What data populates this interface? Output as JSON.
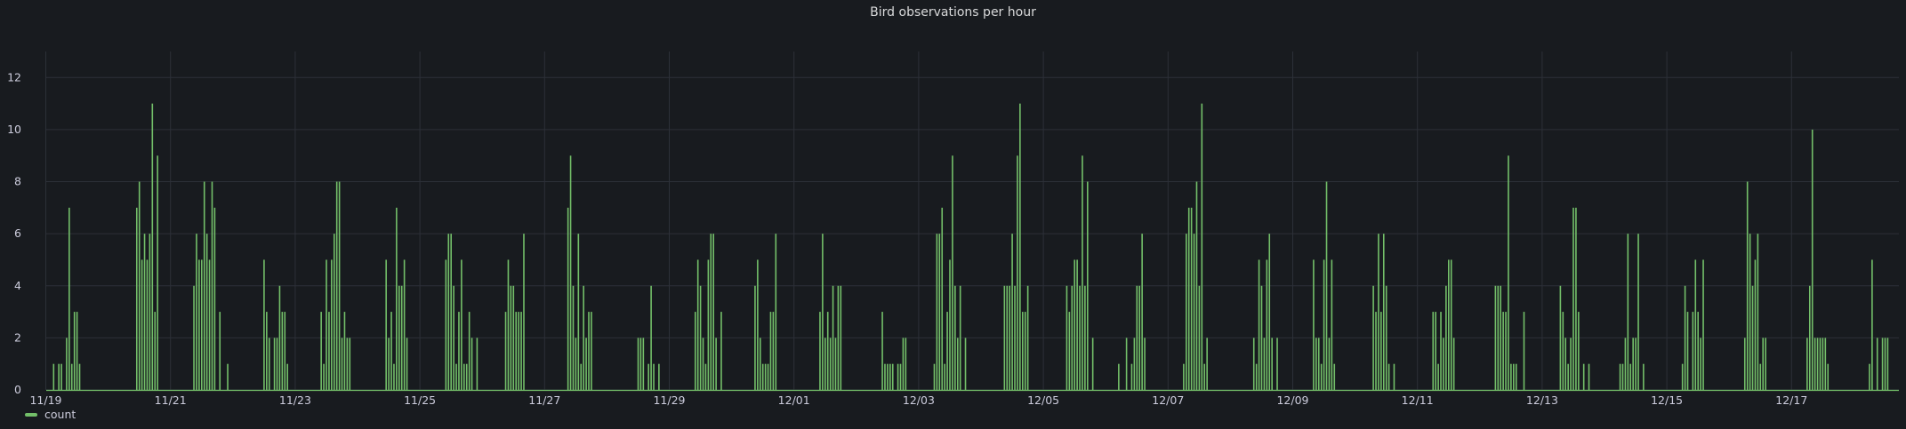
{
  "panel": {
    "title": "Bird observations per hour",
    "legend": {
      "label": "count",
      "color": "#73bf69"
    }
  },
  "chart_data": {
    "type": "bar",
    "title": "Bird observations per hour",
    "xlabel": "",
    "ylabel": "",
    "x_ticks": [
      "11/19",
      "11/21",
      "11/23",
      "11/25",
      "11/27",
      "11/29",
      "12/01",
      "12/03",
      "12/05",
      "12/07",
      "12/09",
      "12/11",
      "12/13",
      "12/15",
      "12/17"
    ],
    "y_ticks": [
      0,
      2,
      4,
      6,
      8,
      10,
      12
    ],
    "ylim": [
      0,
      13
    ],
    "grid": true,
    "legend_placement": "bottom-left",
    "series": [
      {
        "name": "count",
        "color": "#73bf69",
        "points": [
          [
            "11/19 03:00",
            1
          ],
          [
            "11/19 05:00",
            1
          ],
          [
            "11/19 06:00",
            1
          ],
          [
            "11/19 08:00",
            2
          ],
          [
            "11/19 09:00",
            7
          ],
          [
            "11/19 10:00",
            1
          ],
          [
            "11/19 11:00",
            3
          ],
          [
            "11/19 12:00",
            3
          ],
          [
            "11/19 13:00",
            1
          ],
          [
            "11/20 11:00",
            7
          ],
          [
            "11/20 12:00",
            8
          ],
          [
            "11/20 13:00",
            5
          ],
          [
            "11/20 14:00",
            6
          ],
          [
            "11/20 15:00",
            5
          ],
          [
            "11/20 16:00",
            6
          ],
          [
            "11/20 17:00",
            11
          ],
          [
            "11/20 18:00",
            3
          ],
          [
            "11/20 19:00",
            9
          ],
          [
            "11/21 09:00",
            4
          ],
          [
            "11/21 10:00",
            6
          ],
          [
            "11/21 11:00",
            5
          ],
          [
            "11/21 12:00",
            5
          ],
          [
            "11/21 13:00",
            8
          ],
          [
            "11/21 14:00",
            6
          ],
          [
            "11/21 15:00",
            5
          ],
          [
            "11/21 16:00",
            8
          ],
          [
            "11/21 17:00",
            7
          ],
          [
            "11/21 19:00",
            3
          ],
          [
            "11/21 22:00",
            1
          ],
          [
            "11/22 12:00",
            5
          ],
          [
            "11/22 13:00",
            3
          ],
          [
            "11/22 14:00",
            2
          ],
          [
            "11/22 16:00",
            2
          ],
          [
            "11/22 17:00",
            2
          ],
          [
            "11/22 18:00",
            4
          ],
          [
            "11/22 19:00",
            3
          ],
          [
            "11/22 20:00",
            3
          ],
          [
            "11/22 21:00",
            1
          ],
          [
            "11/23 10:00",
            3
          ],
          [
            "11/23 11:00",
            1
          ],
          [
            "11/23 12:00",
            5
          ],
          [
            "11/23 13:00",
            3
          ],
          [
            "11/23 14:00",
            5
          ],
          [
            "11/23 15:00",
            6
          ],
          [
            "11/23 16:00",
            8
          ],
          [
            "11/23 17:00",
            8
          ],
          [
            "11/23 18:00",
            2
          ],
          [
            "11/23 19:00",
            3
          ],
          [
            "11/23 20:00",
            2
          ],
          [
            "11/23 21:00",
            2
          ],
          [
            "11/24 11:00",
            5
          ],
          [
            "11/24 12:00",
            2
          ],
          [
            "11/24 13:00",
            3
          ],
          [
            "11/24 14:00",
            1
          ],
          [
            "11/24 15:00",
            7
          ],
          [
            "11/24 16:00",
            4
          ],
          [
            "11/24 17:00",
            4
          ],
          [
            "11/24 18:00",
            5
          ],
          [
            "11/24 19:00",
            2
          ],
          [
            "11/25 10:00",
            5
          ],
          [
            "11/25 11:00",
            6
          ],
          [
            "11/25 12:00",
            6
          ],
          [
            "11/25 13:00",
            4
          ],
          [
            "11/25 14:00",
            1
          ],
          [
            "11/25 15:00",
            3
          ],
          [
            "11/25 16:00",
            5
          ],
          [
            "11/25 17:00",
            1
          ],
          [
            "11/25 18:00",
            1
          ],
          [
            "11/25 19:00",
            3
          ],
          [
            "11/25 20:00",
            2
          ],
          [
            "11/25 22:00",
            2
          ],
          [
            "11/26 09:00",
            3
          ],
          [
            "11/26 10:00",
            5
          ],
          [
            "11/26 11:00",
            4
          ],
          [
            "11/26 12:00",
            4
          ],
          [
            "11/26 13:00",
            3
          ],
          [
            "11/26 14:00",
            3
          ],
          [
            "11/26 15:00",
            3
          ],
          [
            "11/26 16:00",
            6
          ],
          [
            "11/27 09:00",
            7
          ],
          [
            "11/27 10:00",
            9
          ],
          [
            "11/27 11:00",
            4
          ],
          [
            "11/27 12:00",
            2
          ],
          [
            "11/27 13:00",
            6
          ],
          [
            "11/27 14:00",
            1
          ],
          [
            "11/27 15:00",
            4
          ],
          [
            "11/27 16:00",
            2
          ],
          [
            "11/27 17:00",
            3
          ],
          [
            "11/27 18:00",
            3
          ],
          [
            "11/28 12:00",
            2
          ],
          [
            "11/28 13:00",
            2
          ],
          [
            "11/28 14:00",
            2
          ],
          [
            "11/28 16:00",
            1
          ],
          [
            "11/28 17:00",
            4
          ],
          [
            "11/28 18:00",
            1
          ],
          [
            "11/28 20:00",
            1
          ],
          [
            "11/29 10:00",
            3
          ],
          [
            "11/29 11:00",
            5
          ],
          [
            "11/29 12:00",
            4
          ],
          [
            "11/29 13:00",
            2
          ],
          [
            "11/29 14:00",
            1
          ],
          [
            "11/29 15:00",
            5
          ],
          [
            "11/29 16:00",
            6
          ],
          [
            "11/29 17:00",
            6
          ],
          [
            "11/29 18:00",
            2
          ],
          [
            "11/29 20:00",
            3
          ],
          [
            "11/30 09:00",
            4
          ],
          [
            "11/30 10:00",
            5
          ],
          [
            "11/30 11:00",
            2
          ],
          [
            "11/30 12:00",
            1
          ],
          [
            "11/30 13:00",
            1
          ],
          [
            "11/30 14:00",
            1
          ],
          [
            "11/30 15:00",
            3
          ],
          [
            "11/30 16:00",
            3
          ],
          [
            "11/30 17:00",
            6
          ],
          [
            "12/01 10:00",
            3
          ],
          [
            "12/01 11:00",
            6
          ],
          [
            "12/01 12:00",
            2
          ],
          [
            "12/01 13:00",
            3
          ],
          [
            "12/01 14:00",
            2
          ],
          [
            "12/01 15:00",
            4
          ],
          [
            "12/01 16:00",
            2
          ],
          [
            "12/01 17:00",
            4
          ],
          [
            "12/01 18:00",
            4
          ],
          [
            "12/02 10:00",
            3
          ],
          [
            "12/02 11:00",
            1
          ],
          [
            "12/02 12:00",
            1
          ],
          [
            "12/02 13:00",
            1
          ],
          [
            "12/02 14:00",
            1
          ],
          [
            "12/02 16:00",
            1
          ],
          [
            "12/02 17:00",
            1
          ],
          [
            "12/02 18:00",
            2
          ],
          [
            "12/02 19:00",
            2
          ],
          [
            "12/03 06:00",
            1
          ],
          [
            "12/03 07:00",
            6
          ],
          [
            "12/03 08:00",
            6
          ],
          [
            "12/03 09:00",
            7
          ],
          [
            "12/03 10:00",
            1
          ],
          [
            "12/03 11:00",
            3
          ],
          [
            "12/03 12:00",
            5
          ],
          [
            "12/03 13:00",
            9
          ],
          [
            "12/03 14:00",
            4
          ],
          [
            "12/03 15:00",
            2
          ],
          [
            "12/03 16:00",
            4
          ],
          [
            "12/03 18:00",
            2
          ],
          [
            "12/04 09:00",
            4
          ],
          [
            "12/04 10:00",
            4
          ],
          [
            "12/04 11:00",
            4
          ],
          [
            "12/04 12:00",
            6
          ],
          [
            "12/04 13:00",
            4
          ],
          [
            "12/04 14:00",
            9
          ],
          [
            "12/04 15:00",
            11
          ],
          [
            "12/04 16:00",
            3
          ],
          [
            "12/04 17:00",
            3
          ],
          [
            "12/04 18:00",
            4
          ],
          [
            "12/05 09:00",
            4
          ],
          [
            "12/05 10:00",
            3
          ],
          [
            "12/05 11:00",
            4
          ],
          [
            "12/05 12:00",
            5
          ],
          [
            "12/05 13:00",
            5
          ],
          [
            "12/05 14:00",
            4
          ],
          [
            "12/05 15:00",
            9
          ],
          [
            "12/05 16:00",
            4
          ],
          [
            "12/05 17:00",
            8
          ],
          [
            "12/05 19:00",
            2
          ],
          [
            "12/06 05:00",
            1
          ],
          [
            "12/06 08:00",
            2
          ],
          [
            "12/06 10:00",
            1
          ],
          [
            "12/06 11:00",
            2
          ],
          [
            "12/06 12:00",
            4
          ],
          [
            "12/06 13:00",
            4
          ],
          [
            "12/06 14:00",
            6
          ],
          [
            "12/06 15:00",
            2
          ],
          [
            "12/07 06:00",
            1
          ],
          [
            "12/07 07:00",
            6
          ],
          [
            "12/07 08:00",
            7
          ],
          [
            "12/07 09:00",
            7
          ],
          [
            "12/07 10:00",
            6
          ],
          [
            "12/07 11:00",
            8
          ],
          [
            "12/07 12:00",
            4
          ],
          [
            "12/07 13:00",
            11
          ],
          [
            "12/07 14:00",
            1
          ],
          [
            "12/07 15:00",
            2
          ],
          [
            "12/08 09:00",
            2
          ],
          [
            "12/08 10:00",
            1
          ],
          [
            "12/08 11:00",
            5
          ],
          [
            "12/08 12:00",
            4
          ],
          [
            "12/08 13:00",
            2
          ],
          [
            "12/08 14:00",
            5
          ],
          [
            "12/08 15:00",
            6
          ],
          [
            "12/08 16:00",
            2
          ],
          [
            "12/08 18:00",
            2
          ],
          [
            "12/09 08:00",
            5
          ],
          [
            "12/09 09:00",
            2
          ],
          [
            "12/09 10:00",
            2
          ],
          [
            "12/09 11:00",
            1
          ],
          [
            "12/09 12:00",
            5
          ],
          [
            "12/09 13:00",
            8
          ],
          [
            "12/09 14:00",
            2
          ],
          [
            "12/09 15:00",
            5
          ],
          [
            "12/09 16:00",
            1
          ],
          [
            "12/10 07:00",
            4
          ],
          [
            "12/10 08:00",
            3
          ],
          [
            "12/10 09:00",
            6
          ],
          [
            "12/10 10:00",
            3
          ],
          [
            "12/10 11:00",
            6
          ],
          [
            "12/10 12:00",
            4
          ],
          [
            "12/10 13:00",
            1
          ],
          [
            "12/10 15:00",
            1
          ],
          [
            "12/11 06:00",
            3
          ],
          [
            "12/11 07:00",
            3
          ],
          [
            "12/11 08:00",
            1
          ],
          [
            "12/11 09:00",
            3
          ],
          [
            "12/11 10:00",
            2
          ],
          [
            "12/11 11:00",
            4
          ],
          [
            "12/11 12:00",
            5
          ],
          [
            "12/11 13:00",
            5
          ],
          [
            "12/11 14:00",
            2
          ],
          [
            "12/12 06:00",
            4
          ],
          [
            "12/12 07:00",
            4
          ],
          [
            "12/12 08:00",
            4
          ],
          [
            "12/12 09:00",
            3
          ],
          [
            "12/12 10:00",
            3
          ],
          [
            "12/12 11:00",
            9
          ],
          [
            "12/12 12:00",
            1
          ],
          [
            "12/12 13:00",
            1
          ],
          [
            "12/12 14:00",
            1
          ],
          [
            "12/12 17:00",
            3
          ],
          [
            "12/13 07:00",
            4
          ],
          [
            "12/13 08:00",
            3
          ],
          [
            "12/13 09:00",
            2
          ],
          [
            "12/13 10:00",
            1
          ],
          [
            "12/13 11:00",
            2
          ],
          [
            "12/13 12:00",
            7
          ],
          [
            "12/13 13:00",
            7
          ],
          [
            "12/13 14:00",
            3
          ],
          [
            "12/13 16:00",
            1
          ],
          [
            "12/13 18:00",
            1
          ],
          [
            "12/14 06:00",
            1
          ],
          [
            "12/14 07:00",
            1
          ],
          [
            "12/14 08:00",
            2
          ],
          [
            "12/14 09:00",
            6
          ],
          [
            "12/14 10:00",
            1
          ],
          [
            "12/14 11:00",
            2
          ],
          [
            "12/14 12:00",
            2
          ],
          [
            "12/14 13:00",
            6
          ],
          [
            "12/14 15:00",
            1
          ],
          [
            "12/15 06:00",
            1
          ],
          [
            "12/15 07:00",
            4
          ],
          [
            "12/15 08:00",
            3
          ],
          [
            "12/15 10:00",
            3
          ],
          [
            "12/15 11:00",
            5
          ],
          [
            "12/15 12:00",
            3
          ],
          [
            "12/15 13:00",
            2
          ],
          [
            "12/15 14:00",
            5
          ],
          [
            "12/16 06:00",
            2
          ],
          [
            "12/16 07:00",
            8
          ],
          [
            "12/16 08:00",
            6
          ],
          [
            "12/16 09:00",
            4
          ],
          [
            "12/16 10:00",
            5
          ],
          [
            "12/16 11:00",
            6
          ],
          [
            "12/16 12:00",
            1
          ],
          [
            "12/16 13:00",
            2
          ],
          [
            "12/16 14:00",
            2
          ],
          [
            "12/17 06:00",
            2
          ],
          [
            "12/17 07:00",
            4
          ],
          [
            "12/17 08:00",
            10
          ],
          [
            "12/17 09:00",
            2
          ],
          [
            "12/17 10:00",
            2
          ],
          [
            "12/17 11:00",
            2
          ],
          [
            "12/17 12:00",
            2
          ],
          [
            "12/17 13:00",
            2
          ],
          [
            "12/17 14:00",
            1
          ],
          [
            "12/18 06:00",
            1
          ],
          [
            "12/18 07:00",
            5
          ],
          [
            "12/18 09:00",
            2
          ],
          [
            "12/18 11:00",
            2
          ],
          [
            "12/18 12:00",
            2
          ],
          [
            "12/18 13:00",
            2
          ]
        ]
      }
    ]
  }
}
